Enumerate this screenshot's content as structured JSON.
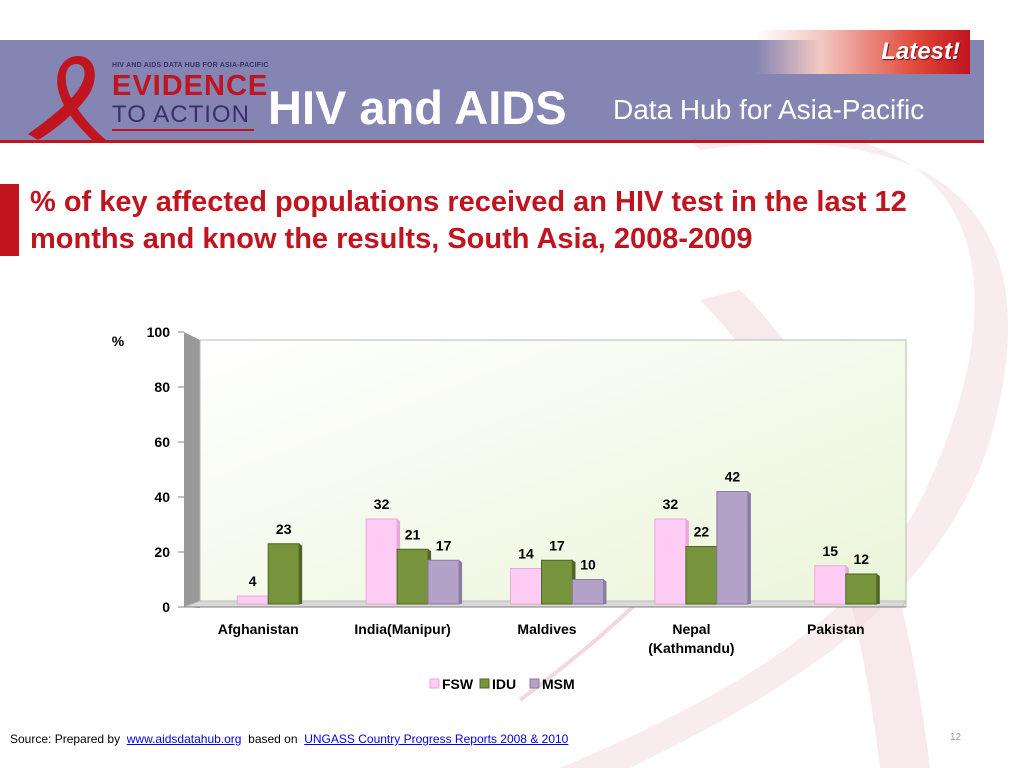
{
  "header": {
    "logo_top": "HIV AND AIDS DATA HUB FOR ASIA-PACIFIC",
    "logo_line1": "EVIDENCE",
    "logo_line2": "TO ACTION",
    "title_main": "HIV and AIDS",
    "title_sub": "Data Hub for Asia-Pacific",
    "badge": "Latest!"
  },
  "colors": {
    "header_bg": "#8585b3",
    "accent_red": "#c0141f",
    "fsw": "#ffccf5",
    "idu": "#77933c",
    "msm": "#b3a2c7"
  },
  "slide_title": "% of key affected populations received an HIV test in the last 12 months and know the results, South Asia, 2008-2009",
  "chart_data": {
    "type": "bar",
    "title": "",
    "ylabel": "%",
    "xlabel": "",
    "ylim": [
      0,
      100
    ],
    "yticks": [
      0,
      20,
      40,
      60,
      80,
      100
    ],
    "categories": [
      [
        "Afghanistan"
      ],
      [
        "India(Manipur)"
      ],
      [
        "Maldives"
      ],
      [
        "Nepal",
        "(Kathmandu)"
      ],
      [
        "Pakistan"
      ]
    ],
    "series": [
      {
        "name": "FSW",
        "values": [
          4,
          32,
          14,
          32,
          15
        ]
      },
      {
        "name": "IDU",
        "values": [
          23,
          21,
          17,
          22,
          12
        ]
      },
      {
        "name": "MSM",
        "values": [
          null,
          17,
          10,
          42,
          null
        ]
      }
    ],
    "legend_position": "bottom",
    "grid": false
  },
  "footer": {
    "source_label": "Source:  Prepared by",
    "link1": "www.aidsdatahub.org",
    "based_on": "based on",
    "link2": "UNGASS Country Progress Reports  2008 & 2010",
    "page_number": "12"
  }
}
